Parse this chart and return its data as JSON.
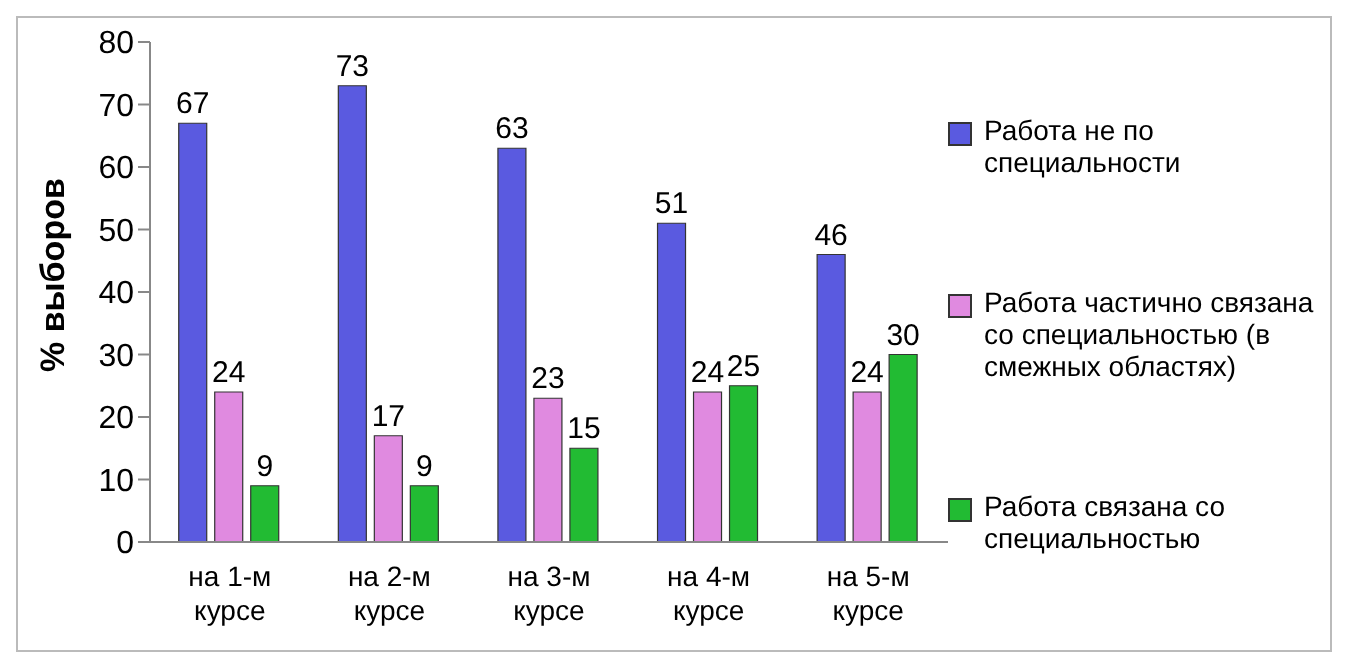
{
  "chart_data": {
    "type": "bar",
    "ylabel": "% выборов",
    "categories": [
      "на 1-м курсе",
      "на 2-м курсе",
      "на 3-м курсе",
      "на 4-м курсе",
      "на 5-м курсе"
    ],
    "series": [
      {
        "name": "Работа не по специальности",
        "color": "#5a5ae0",
        "values": [
          67,
          73,
          63,
          51,
          46
        ]
      },
      {
        "name": "Работа частично связана со специальностью (в смежных областях)",
        "color": "#e08ae0",
        "values": [
          24,
          17,
          23,
          24,
          24
        ]
      },
      {
        "name": "Работа связана со специальностью",
        "color": "#22bb33",
        "values": [
          9,
          9,
          15,
          25,
          30
        ]
      }
    ],
    "ylim": [
      0,
      80
    ],
    "yticks": [
      0,
      10,
      20,
      30,
      40,
      50,
      60,
      70,
      80
    ],
    "grid": false,
    "legend": "right",
    "data_labels": true
  }
}
